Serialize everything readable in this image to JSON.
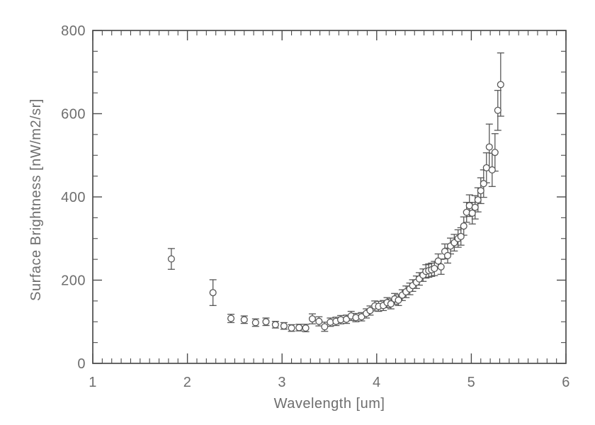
{
  "figure": {
    "background": "#ffffff",
    "axis_color": "#4c4c4c",
    "data_color": "#585858",
    "text_color": "#6e6e6e"
  },
  "chart_data": {
    "type": "scatter",
    "title": "",
    "xlabel": "Wavelength [um]",
    "ylabel": "Surface Brightness [nW/m2/sr]",
    "xlim": [
      1,
      6
    ],
    "ylim": [
      0,
      800
    ],
    "xticks": [
      1,
      2,
      3,
      4,
      5,
      6
    ],
    "yticks": [
      0,
      200,
      400,
      600,
      800
    ],
    "x_minor_step": 0.1,
    "y_minor_step": 50,
    "grid": false,
    "marker": "open-circle",
    "error_bars": true,
    "x": [
      1.83,
      2.27,
      2.46,
      2.6,
      2.72,
      2.83,
      2.93,
      3.02,
      3.1,
      3.18,
      3.25,
      3.32,
      3.39,
      3.45,
      3.51,
      3.57,
      3.62,
      3.68,
      3.73,
      3.78,
      3.84,
      3.89,
      3.93,
      3.98,
      4.02,
      4.07,
      4.11,
      4.15,
      4.19,
      4.23,
      4.27,
      4.31,
      4.35,
      4.38,
      4.42,
      4.45,
      4.49,
      4.52,
      4.55,
      4.58,
      4.61,
      4.65,
      4.68,
      4.72,
      4.75,
      4.78,
      4.82,
      4.86,
      4.89,
      4.92,
      4.95,
      4.98,
      5.01,
      5.04,
      5.07,
      5.1,
      5.13,
      5.16,
      5.19,
      5.22,
      5.25,
      5.28,
      5.31
    ],
    "y": [
      251,
      170,
      108,
      105,
      98,
      100,
      93,
      90,
      85,
      86,
      85,
      107,
      101,
      88,
      99,
      101,
      105,
      106,
      114,
      110,
      112,
      120,
      127,
      138,
      137,
      139,
      146,
      143,
      155,
      152,
      164,
      172,
      179,
      187,
      195,
      203,
      212,
      221,
      223,
      225,
      228,
      246,
      232,
      269,
      259,
      282,
      290,
      300,
      305,
      330,
      363,
      379,
      361,
      375,
      393,
      415,
      432,
      470,
      520,
      465,
      507,
      608,
      670
    ],
    "yerr": [
      25,
      31,
      10,
      9,
      9,
      9,
      8,
      8,
      8,
      8,
      9,
      12,
      11,
      11,
      10,
      10,
      10,
      10,
      11,
      10,
      10,
      11,
      11,
      12,
      12,
      12,
      12,
      12,
      13,
      13,
      13,
      14,
      14,
      14,
      15,
      15,
      15,
      16,
      16,
      16,
      17,
      17,
      18,
      18,
      18,
      19,
      20,
      21,
      21,
      22,
      24,
      26,
      26,
      28,
      29,
      31,
      33,
      36,
      55,
      40,
      45,
      48,
      76
    ]
  }
}
